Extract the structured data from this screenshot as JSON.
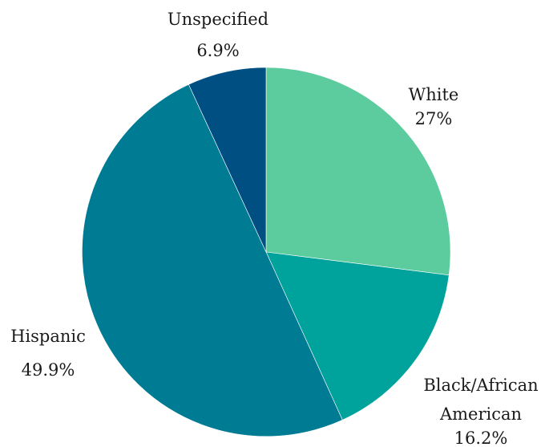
{
  "chart_data": {
    "type": "pie",
    "title": "",
    "start_angle_deg": 0,
    "direction": "clockwise",
    "slices": [
      {
        "label": "White",
        "value": 27.0,
        "value_label": "27%",
        "color": "#5ccc9e"
      },
      {
        "label": "Black/African American",
        "value": 16.2,
        "value_label": "16.2%",
        "color": "#00a39c"
      },
      {
        "label": "Hispanic",
        "value": 49.9,
        "value_label": "49.9%",
        "color": "#007b94"
      },
      {
        "label": "Unspecified",
        "value": 6.9,
        "value_label": "6.9%",
        "color": "#004f82"
      }
    ]
  }
}
